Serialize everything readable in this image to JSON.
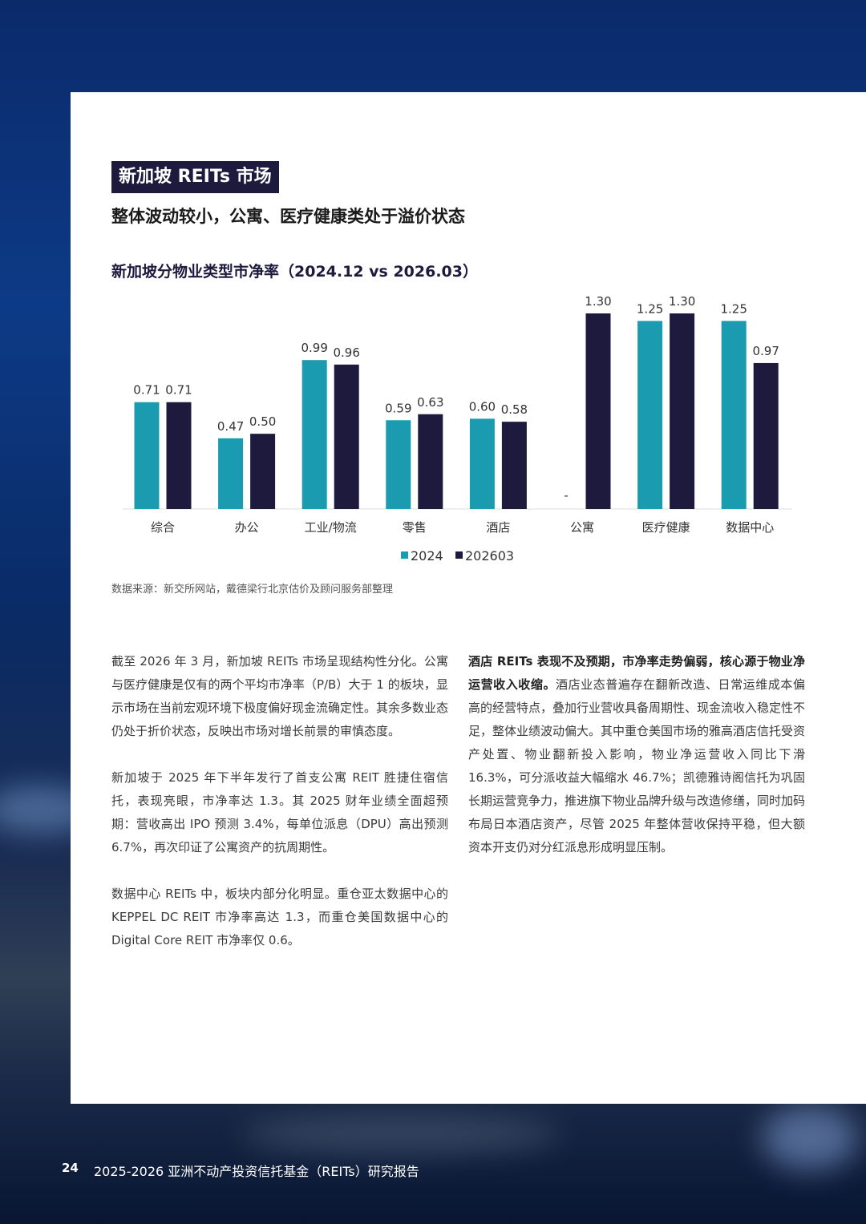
{
  "header": {
    "tag": "新加坡 REITs 市场",
    "subtitle": "整体波动较小，公寓、医疗健康类处于溢价状态"
  },
  "chart_data": {
    "type": "bar",
    "title": "新加坡分物业类型市净率（2024.12 vs 2026.03）",
    "categories": [
      "综合",
      "办公",
      "工业/物流",
      "零售",
      "酒店",
      "公寓",
      "医疗健康",
      "数据中心"
    ],
    "series": [
      {
        "name": "2024",
        "color": "#1a9bb0",
        "values": [
          0.71,
          0.47,
          0.99,
          0.59,
          0.6,
          null,
          1.25,
          1.25
        ],
        "value_labels": [
          "0.71",
          "0.47",
          "0.99",
          "0.59",
          "0.60",
          "-",
          "1.25",
          "1.25"
        ]
      },
      {
        "name": "202603",
        "color": "#1d1a3d",
        "values": [
          0.71,
          0.5,
          0.96,
          0.63,
          0.58,
          1.3,
          1.3,
          0.97
        ],
        "value_labels": [
          "0.71",
          "0.50",
          "0.96",
          "0.63",
          "0.58",
          "1.30",
          "1.30",
          "0.97"
        ]
      }
    ],
    "legend": "bottom"
  },
  "source": "数据来源：新交所网站，戴德梁行北京估价及顾问服务部整理",
  "left_paragraphs": [
    "截至 2026 年 3 月，新加坡 REITs 市场呈现结构性分化。公寓与医疗健康是仅有的两个平均市净率（P/B）大于 1 的板块，显示市场在当前宏观环境下极度偏好现金流确定性。其余多数业态仍处于折价状态，反映出市场对增长前景的审慎态度。",
    "新加坡于 2025 年下半年发行了首支公寓 REIT 胜捷住宿信托，表现亮眼，市净率达 1.3。其 2025 财年业绩全面超预期：营收高出 IPO 预测 3.4%，每单位派息（DPU）高出预测 6.7%，再次印证了公寓资产的抗周期性。",
    "数据中心 REITs 中，板块内部分化明显。重仓亚太数据中心的 KEPPEL DC REIT 市净率高达 1.3，而重仓美国数据中心的 Digital Core REIT 市净率仅 0.6。"
  ],
  "right_paragraph": {
    "bold": "酒店 REITs 表现不及预期，市净率走势偏弱，核心源于物业净运营收入收缩。",
    "text": "酒店业态普遍存在翻新改造、日常运维成本偏高的经营特点，叠加行业营收具备周期性、现金流收入稳定性不足，整体业绩波动偏大。其中重仓美国市场的雅高酒店信托受资产处置、物业翻新投入影响，物业净运营收入同比下滑 16.3%，可分派收益大幅缩水 46.7%；凯德雅诗阁信托为巩固长期运营竞争力，推进旗下物业品牌升级与改造修缮，同时加码布局日本酒店资产，尽管 2025 年整体营收保持平稳，但大额资本开支仍对分红派息形成明显压制。"
  },
  "footer": {
    "page": "24",
    "title": "2025-2026 亚洲不动产投资信托基金（REITs）研究报告"
  }
}
